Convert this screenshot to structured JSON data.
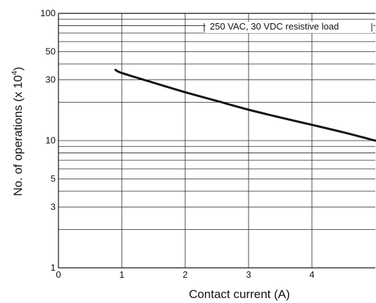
{
  "chart_data": {
    "type": "line",
    "title": "",
    "xlabel": "Contact current (A)",
    "ylabel": "No. of operations (x 10",
    "ylabel_sup": "4",
    "ylabel_close": ")",
    "x_scale": "linear",
    "y_scale": "log",
    "xlim": [
      0,
      5
    ],
    "ylim": [
      1,
      100
    ],
    "x_ticks": [
      0,
      1,
      2,
      3,
      4
    ],
    "x_tick_labels": [
      "0",
      "1",
      "2",
      "3",
      "4"
    ],
    "y_labeled_ticks": [
      1,
      3,
      5,
      10,
      30,
      50,
      100
    ],
    "y_tick_labels": [
      "1",
      "3",
      "5",
      "10",
      "30",
      "50",
      "100"
    ],
    "y_gridlines": [
      2,
      3,
      4,
      5,
      6,
      7,
      8,
      9,
      10,
      20,
      30,
      40,
      50,
      60,
      70,
      80,
      90
    ],
    "grid": true,
    "line_color": "#111111",
    "series": [
      {
        "name": "250 VAC, 30 VDC resistive load",
        "x": [
          0.9,
          1.0,
          1.5,
          2.0,
          2.5,
          3.0,
          3.5,
          4.0,
          4.5,
          5.0
        ],
        "y": [
          36,
          34,
          28.5,
          24,
          20.5,
          17.5,
          15.2,
          13.3,
          11.6,
          10.0
        ]
      }
    ]
  }
}
